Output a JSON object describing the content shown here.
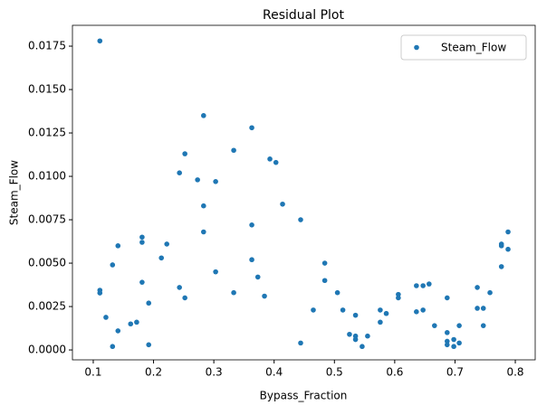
{
  "chart_data": {
    "type": "scatter",
    "title": "Residual Plot",
    "x_label": "Bypass_Fraction",
    "y_label": "Steam_Flow",
    "xlim": [
      0.0655,
      0.833
    ],
    "ylim": [
      -0.00057,
      0.0187
    ],
    "xticks": [
      0.1,
      0.2,
      0.3,
      0.4,
      0.5,
      0.6,
      0.7,
      0.8
    ],
    "yticks": [
      {
        "value": 0,
        "label": "0.0000"
      },
      {
        "value": 0.0025,
        "label": "0.0025"
      },
      {
        "value": 0.005,
        "label": "0.0050"
      },
      {
        "value": 0.0075,
        "label": "0.0075"
      },
      {
        "value": 0.01,
        "label": "0.0100"
      },
      {
        "value": 0.0125,
        "label": "0.0125"
      },
      {
        "value": 0.015,
        "label": "0.0150"
      },
      {
        "value": 0.0175,
        "label": "0.0175"
      }
    ],
    "legend": "upper right",
    "grid": false,
    "series": [
      {
        "name": "Steam_Flow",
        "color": "#1f77b4",
        "x": [
          0.111,
          0.111,
          0.111,
          0.121,
          0.132,
          0.132,
          0.141,
          0.141,
          0.162,
          0.172,
          0.181,
          0.181,
          0.181,
          0.192,
          0.192,
          0.213,
          0.222,
          0.243,
          0.243,
          0.252,
          0.252,
          0.273,
          0.283,
          0.283,
          0.283,
          0.303,
          0.303,
          0.333,
          0.333,
          0.363,
          0.363,
          0.363,
          0.373,
          0.384,
          0.393,
          0.403,
          0.414,
          0.444,
          0.444,
          0.465,
          0.484,
          0.484,
          0.505,
          0.514,
          0.525,
          0.535,
          0.535,
          0.535,
          0.546,
          0.555,
          0.576,
          0.576,
          0.586,
          0.606,
          0.606,
          0.636,
          0.636,
          0.647,
          0.647,
          0.657,
          0.666,
          0.687,
          0.687,
          0.687,
          0.687,
          0.698,
          0.698,
          0.707,
          0.707,
          0.737,
          0.737,
          0.747,
          0.747,
          0.758,
          0.777,
          0.777,
          0.777,
          0.788,
          0.788
        ],
        "values": [
          0.0178,
          0.00344,
          0.00328,
          0.00188,
          0.0049,
          0.0002,
          0.006,
          0.0011,
          0.0015,
          0.0016,
          0.0065,
          0.0062,
          0.0039,
          0.0027,
          0.0003,
          0.0053,
          0.0061,
          0.0102,
          0.0036,
          0.0113,
          0.003,
          0.0098,
          0.0135,
          0.0083,
          0.0068,
          0.0097,
          0.0045,
          0.0115,
          0.0033,
          0.0128,
          0.0072,
          0.0052,
          0.0042,
          0.0031,
          0.011,
          0.0108,
          0.0084,
          0.0075,
          0.0004,
          0.0023,
          0.005,
          0.004,
          0.0033,
          0.0023,
          0.0009,
          0.002,
          0.0008,
          0.0006,
          0.0002,
          0.0008,
          0.0016,
          0.0023,
          0.0021,
          0.0032,
          0.003,
          0.0037,
          0.0022,
          0.0037,
          0.0023,
          0.0038,
          0.0014,
          0.003,
          0.001,
          0.0005,
          0.0003,
          0.0006,
          0.0002,
          0.0014,
          0.0004,
          0.0036,
          0.0024,
          0.0024,
          0.0014,
          0.0033,
          0.0048,
          0.0061,
          0.006,
          0.0068,
          0.0058
        ]
      }
    ]
  }
}
